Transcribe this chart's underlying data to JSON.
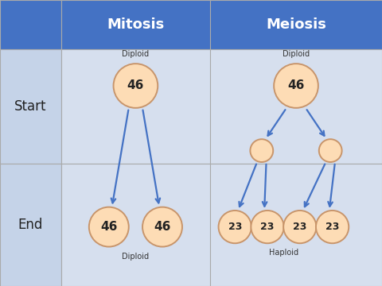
{
  "header_bg": "#4472C4",
  "header_text_color": "#FFFFFF",
  "cell_bg_label": "#C5D3E8",
  "cell_bg_content": "#D6DFEE",
  "border_color": "#AAAAAA",
  "col_headers": [
    "Mitosis",
    "Meiosis"
  ],
  "row_labels": [
    "Start",
    "End"
  ],
  "circle_fill": "#FDDCB5",
  "circle_edge": "#C8956B",
  "arrow_color": "#4472C4",
  "label_diploid": "Diploid",
  "label_haploid": "Haploid",
  "mitosis_start_val": "46",
  "mitosis_end_vals": [
    "46",
    "46"
  ],
  "meiosis_start_val": "46",
  "meiosis_end_vals": [
    "23",
    "23",
    "23",
    "23"
  ],
  "fig_width": 4.8,
  "fig_height": 3.6,
  "dpi": 100
}
